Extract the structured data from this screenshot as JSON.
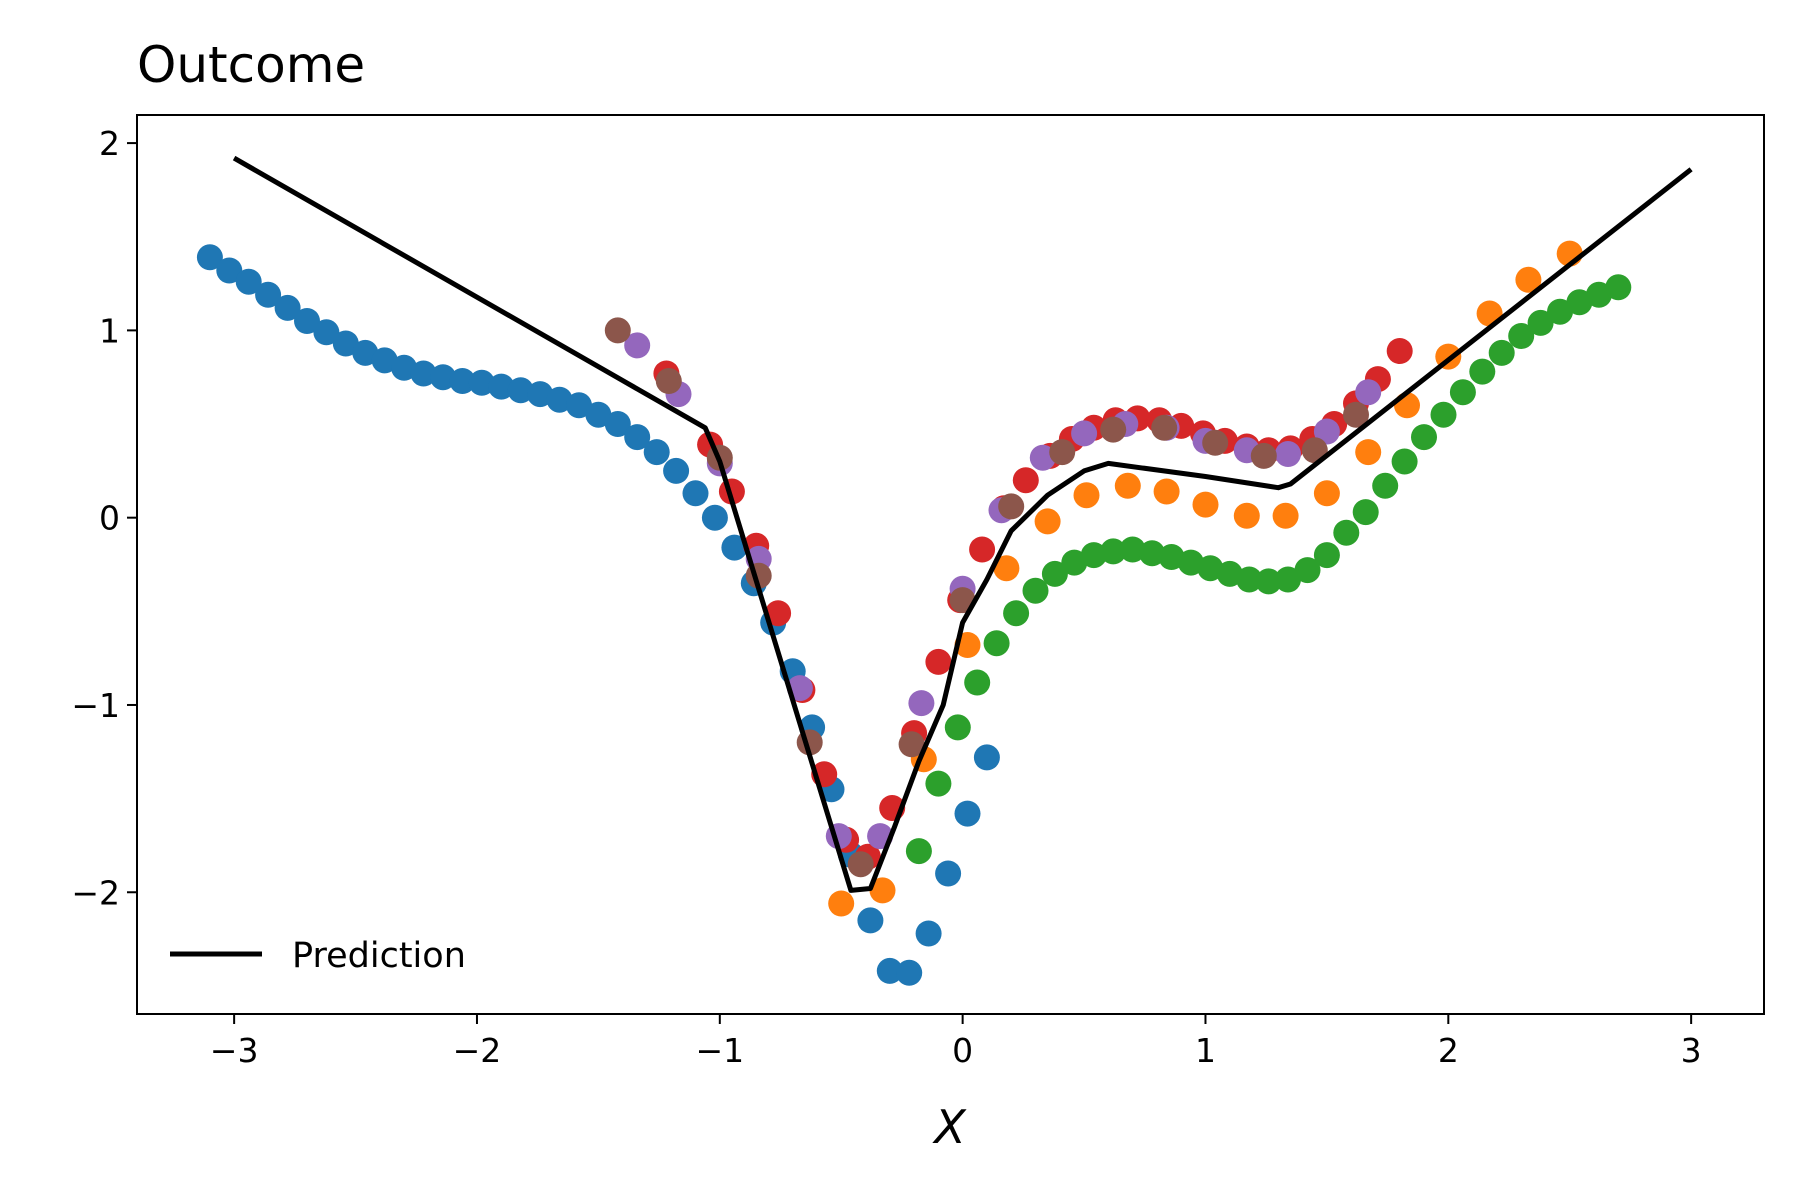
{
  "chart_data": {
    "type": "scatter",
    "title": "Outcome",
    "xlabel": "X",
    "ylabel": "",
    "xlim": [
      -3.4,
      3.3
    ],
    "ylim": [
      -2.65,
      2.15
    ],
    "xticks": [
      -3,
      -2,
      -1,
      0,
      1,
      2,
      3
    ],
    "yticks": [
      -2,
      -1,
      0,
      1,
      2
    ],
    "xtick_labels": [
      "−3",
      "−2",
      "−1",
      "0",
      "1",
      "2",
      "3"
    ],
    "ytick_labels": [
      "−2",
      "−1",
      "0",
      "1",
      "2"
    ],
    "grid": false,
    "legend": {
      "position": "lower-left",
      "entries": [
        "Prediction"
      ]
    },
    "line": {
      "name": "Prediction",
      "color": "#000000",
      "points": [
        [
          -3.0,
          1.92
        ],
        [
          -1.06,
          0.48
        ],
        [
          -1.0,
          0.3
        ],
        [
          -0.46,
          -1.99
        ],
        [
          -0.38,
          -1.98
        ],
        [
          -0.28,
          -1.65
        ],
        [
          -0.18,
          -1.3
        ],
        [
          -0.08,
          -1.0
        ],
        [
          0.0,
          -0.56
        ],
        [
          0.1,
          -0.33
        ],
        [
          0.2,
          -0.07
        ],
        [
          0.35,
          0.12
        ],
        [
          0.5,
          0.25
        ],
        [
          0.6,
          0.29
        ],
        [
          1.0,
          0.22
        ],
        [
          1.3,
          0.16
        ],
        [
          1.35,
          0.18
        ],
        [
          3.0,
          1.86
        ]
      ]
    },
    "series": [
      {
        "color": "#1f77b4",
        "points": [
          [
            -3.1,
            1.39
          ],
          [
            -3.02,
            1.32
          ],
          [
            -2.94,
            1.26
          ],
          [
            -2.86,
            1.19
          ],
          [
            -2.78,
            1.12
          ],
          [
            -2.7,
            1.05
          ],
          [
            -2.62,
            0.99
          ],
          [
            -2.54,
            0.93
          ],
          [
            -2.46,
            0.88
          ],
          [
            -2.38,
            0.84
          ],
          [
            -2.3,
            0.8
          ],
          [
            -2.22,
            0.77
          ],
          [
            -2.14,
            0.75
          ],
          [
            -2.06,
            0.73
          ],
          [
            -1.98,
            0.72
          ],
          [
            -1.9,
            0.7
          ],
          [
            -1.82,
            0.68
          ],
          [
            -1.74,
            0.66
          ],
          [
            -1.66,
            0.63
          ],
          [
            -1.58,
            0.6
          ],
          [
            -1.5,
            0.55
          ],
          [
            -1.42,
            0.5
          ],
          [
            -1.34,
            0.43
          ],
          [
            -1.26,
            0.35
          ],
          [
            -1.18,
            0.25
          ],
          [
            -1.1,
            0.13
          ],
          [
            -1.02,
            0.0
          ],
          [
            -0.94,
            -0.16
          ],
          [
            -0.86,
            -0.35
          ],
          [
            -0.78,
            -0.56
          ],
          [
            -0.7,
            -0.82
          ],
          [
            -0.62,
            -1.12
          ],
          [
            -0.54,
            -1.45
          ],
          [
            -0.46,
            -1.8
          ],
          [
            -0.38,
            -2.15
          ],
          [
            -0.3,
            -2.42
          ],
          [
            -0.22,
            -2.43
          ],
          [
            -0.14,
            -2.22
          ],
          [
            -0.06,
            -1.9
          ],
          [
            0.02,
            -1.58
          ],
          [
            0.1,
            -1.28
          ]
        ]
      },
      {
        "color": "#ff7f0e",
        "points": [
          [
            -0.5,
            -2.06
          ],
          [
            -0.33,
            -1.99
          ],
          [
            -0.16,
            -1.29
          ],
          [
            0.02,
            -0.68
          ],
          [
            0.18,
            -0.27
          ],
          [
            0.35,
            -0.02
          ],
          [
            0.51,
            0.12
          ],
          [
            0.68,
            0.17
          ],
          [
            0.84,
            0.14
          ],
          [
            1.0,
            0.07
          ],
          [
            1.17,
            0.01
          ],
          [
            1.33,
            0.01
          ],
          [
            1.5,
            0.13
          ],
          [
            1.67,
            0.35
          ],
          [
            1.83,
            0.6
          ],
          [
            2.0,
            0.86
          ],
          [
            2.17,
            1.09
          ],
          [
            2.33,
            1.27
          ],
          [
            2.5,
            1.41
          ]
        ]
      },
      {
        "color": "#2ca02c",
        "points": [
          [
            -0.18,
            -1.78
          ],
          [
            -0.1,
            -1.42
          ],
          [
            -0.02,
            -1.12
          ],
          [
            0.06,
            -0.88
          ],
          [
            0.14,
            -0.67
          ],
          [
            0.22,
            -0.51
          ],
          [
            0.3,
            -0.39
          ],
          [
            0.38,
            -0.3
          ],
          [
            0.46,
            -0.24
          ],
          [
            0.54,
            -0.2
          ],
          [
            0.62,
            -0.18
          ],
          [
            0.7,
            -0.17
          ],
          [
            0.78,
            -0.19
          ],
          [
            0.86,
            -0.21
          ],
          [
            0.94,
            -0.24
          ],
          [
            1.02,
            -0.27
          ],
          [
            1.1,
            -0.3
          ],
          [
            1.18,
            -0.33
          ],
          [
            1.26,
            -0.34
          ],
          [
            1.34,
            -0.33
          ],
          [
            1.42,
            -0.28
          ],
          [
            1.5,
            -0.2
          ],
          [
            1.58,
            -0.08
          ],
          [
            1.66,
            0.03
          ],
          [
            1.74,
            0.17
          ],
          [
            1.82,
            0.3
          ],
          [
            1.9,
            0.43
          ],
          [
            1.98,
            0.55
          ],
          [
            2.06,
            0.67
          ],
          [
            2.14,
            0.78
          ],
          [
            2.22,
            0.88
          ],
          [
            2.3,
            0.97
          ],
          [
            2.38,
            1.04
          ],
          [
            2.46,
            1.1
          ],
          [
            2.54,
            1.15
          ],
          [
            2.62,
            1.19
          ],
          [
            2.7,
            1.23
          ]
        ]
      },
      {
        "color": "#d62728",
        "points": [
          [
            -1.22,
            0.77
          ],
          [
            -1.04,
            0.39
          ],
          [
            -0.95,
            0.14
          ],
          [
            -0.85,
            -0.15
          ],
          [
            -0.76,
            -0.51
          ],
          [
            -0.66,
            -0.92
          ],
          [
            -0.57,
            -1.37
          ],
          [
            -0.48,
            -1.72
          ],
          [
            -0.39,
            -1.81
          ],
          [
            -0.29,
            -1.55
          ],
          [
            -0.2,
            -1.15
          ],
          [
            -0.1,
            -0.77
          ],
          [
            -0.01,
            -0.44
          ],
          [
            0.08,
            -0.17
          ],
          [
            0.17,
            0.05
          ],
          [
            0.26,
            0.2
          ],
          [
            0.36,
            0.33
          ],
          [
            0.45,
            0.42
          ],
          [
            0.54,
            0.48
          ],
          [
            0.63,
            0.52
          ],
          [
            0.72,
            0.53
          ],
          [
            0.81,
            0.52
          ],
          [
            0.9,
            0.49
          ],
          [
            0.99,
            0.45
          ],
          [
            1.08,
            0.41
          ],
          [
            1.17,
            0.38
          ],
          [
            1.26,
            0.36
          ],
          [
            1.35,
            0.37
          ],
          [
            1.44,
            0.42
          ],
          [
            1.53,
            0.5
          ],
          [
            1.62,
            0.61
          ],
          [
            1.71,
            0.74
          ],
          [
            1.8,
            0.89
          ]
        ]
      },
      {
        "color": "#9467bd",
        "points": [
          [
            -1.34,
            0.92
          ],
          [
            -1.17,
            0.66
          ],
          [
            -1.0,
            0.29
          ],
          [
            -0.84,
            -0.22
          ],
          [
            -0.67,
            -0.91
          ],
          [
            -0.51,
            -1.7
          ],
          [
            -0.34,
            -1.7
          ],
          [
            -0.17,
            -0.99
          ],
          [
            0.0,
            -0.38
          ],
          [
            0.16,
            0.04
          ],
          [
            0.33,
            0.32
          ],
          [
            0.5,
            0.45
          ],
          [
            0.67,
            0.5
          ],
          [
            0.84,
            0.48
          ],
          [
            1.0,
            0.41
          ],
          [
            1.17,
            0.36
          ],
          [
            1.34,
            0.34
          ],
          [
            1.5,
            0.46
          ],
          [
            1.67,
            0.67
          ]
        ]
      },
      {
        "color": "#8c564b",
        "points": [
          [
            -1.42,
            1.0
          ],
          [
            -1.21,
            0.73
          ],
          [
            -1.0,
            0.32
          ],
          [
            -0.84,
            -0.31
          ],
          [
            -0.63,
            -1.2
          ],
          [
            -0.42,
            -1.85
          ],
          [
            -0.21,
            -1.21
          ],
          [
            0.0,
            -0.44
          ],
          [
            0.2,
            0.06
          ],
          [
            0.41,
            0.35
          ],
          [
            0.62,
            0.47
          ],
          [
            0.83,
            0.48
          ],
          [
            1.04,
            0.4
          ],
          [
            1.24,
            0.33
          ],
          [
            1.45,
            0.36
          ],
          [
            1.62,
            0.55
          ]
        ]
      }
    ]
  }
}
